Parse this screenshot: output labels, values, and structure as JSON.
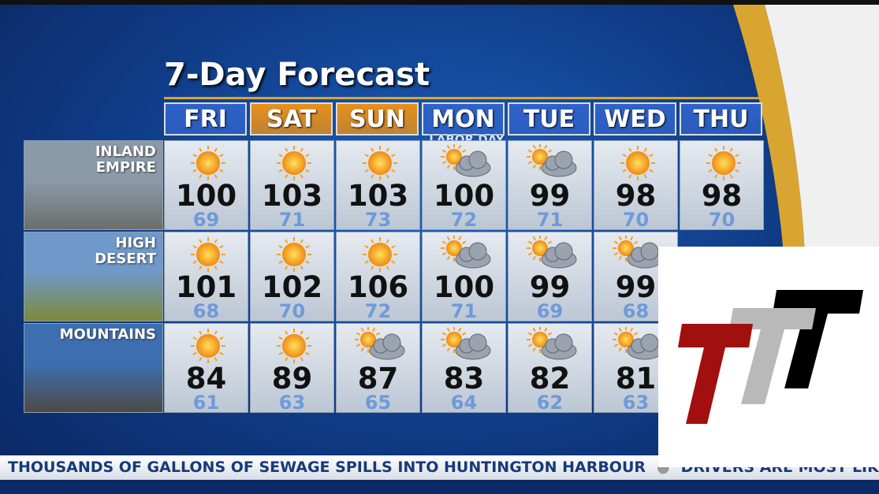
{
  "header": {
    "title": "7-Day Forecast"
  },
  "days": [
    {
      "name": "FRI",
      "color": "#2f62c8"
    },
    {
      "name": "SAT",
      "color": "#e8901a"
    },
    {
      "name": "SUN",
      "color": "#e8901a"
    },
    {
      "name": "MON",
      "color": "#2f62c8",
      "note": "LABOR DAY"
    },
    {
      "name": "TUE",
      "color": "#2f62c8"
    },
    {
      "name": "WED",
      "color": "#2f62c8"
    },
    {
      "name": "THU",
      "color": "#2f62c8"
    }
  ],
  "regions": [
    {
      "label": [
        "INLAND",
        "EMPIRE"
      ],
      "cells": [
        {
          "icon": "sun",
          "high": 100,
          "low": 69
        },
        {
          "icon": "sun",
          "high": 103,
          "low": 71
        },
        {
          "icon": "sun",
          "high": 103,
          "low": 73
        },
        {
          "icon": "partly-cloudy",
          "high": 100,
          "low": 72
        },
        {
          "icon": "partly-cloudy",
          "high": 99,
          "low": 71
        },
        {
          "icon": "sun",
          "high": 98,
          "low": 70
        },
        {
          "icon": "sun",
          "high": 98,
          "low": 70
        }
      ]
    },
    {
      "label": [
        "HIGH",
        "DESERT"
      ],
      "cells": [
        {
          "icon": "sun",
          "high": 101,
          "low": 68
        },
        {
          "icon": "sun",
          "high": 102,
          "low": 70
        },
        {
          "icon": "sun",
          "high": 106,
          "low": 72
        },
        {
          "icon": "partly-cloudy",
          "high": 100,
          "low": 71
        },
        {
          "icon": "partly-cloudy",
          "high": 99,
          "low": 69
        },
        {
          "icon": "partly-cloudy",
          "high": 99,
          "low": 68
        },
        null
      ]
    },
    {
      "label": [
        "MOUNTAINS"
      ],
      "cells": [
        {
          "icon": "sun",
          "high": 84,
          "low": 61
        },
        {
          "icon": "sun",
          "high": 89,
          "low": 63
        },
        {
          "icon": "partly-cloudy",
          "high": 87,
          "low": 65
        },
        {
          "icon": "partly-cloudy",
          "high": 83,
          "low": 64
        },
        {
          "icon": "partly-cloudy",
          "high": 82,
          "low": 62
        },
        {
          "icon": "partly-cloudy",
          "high": 81,
          "low": 63
        },
        null
      ]
    }
  ],
  "ticker": [
    "THOUSANDS OF GALLONS OF SEWAGE SPILLS INTO HUNTINGTON HARBOUR",
    "DRIVERS ARE MOST LIK"
  ]
}
